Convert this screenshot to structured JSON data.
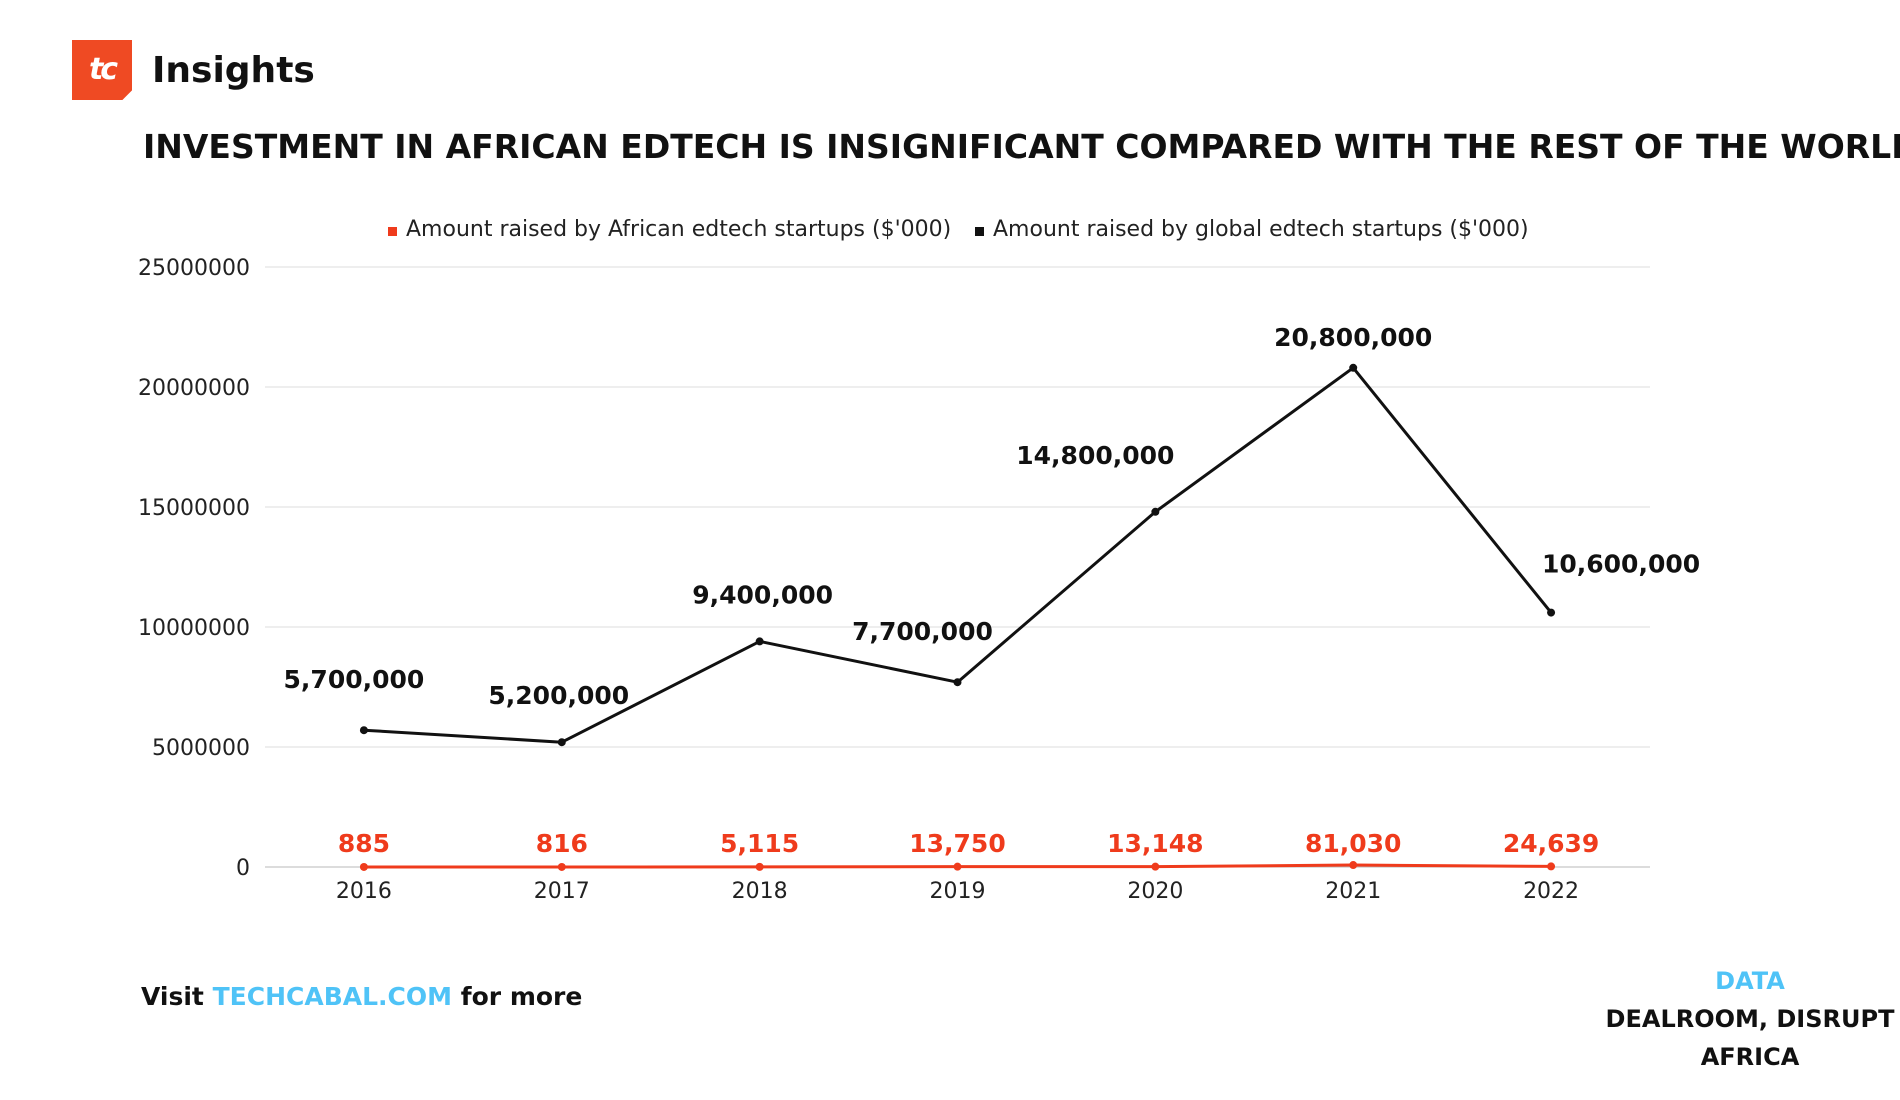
{
  "brand": {
    "name": "Insights",
    "logo_text": "tc",
    "logo_color": "#ef4a23"
  },
  "headline": "INVESTMENT IN AFRICAN EDTECH IS INSIGNIFICANT COMPARED WITH THE REST OF THE WORLD",
  "footer": {
    "visit_prefix": "Visit",
    "visit_link": "TECHCABAL.COM",
    "visit_suffix": "for more",
    "source_label": "DATA",
    "source_line1": "DEALROOM, DISRUPT",
    "source_line2": "AFRICA",
    "accent_color": "#4fc3f7"
  },
  "chart_data": {
    "type": "line",
    "title": "",
    "xlabel": "",
    "ylabel": "",
    "categories": [
      "2016",
      "2017",
      "2018",
      "2019",
      "2020",
      "2021",
      "2022"
    ],
    "ylim": [
      0,
      25000000
    ],
    "yticks": [
      "0",
      "5000000",
      "10000000",
      "15000000",
      "20000000",
      "25000000"
    ],
    "grid": true,
    "legend_position": "top-center",
    "series": [
      {
        "name": "Amount raised by African edtech startups ($'000)",
        "color": "#ef3b1c",
        "values": [
          885,
          816,
          5115,
          13750,
          13148,
          81030,
          24639
        ],
        "labels": [
          "885",
          "816",
          "5,115",
          "13,750",
          "13,148",
          "81,030",
          "24,639"
        ]
      },
      {
        "name": "Amount raised by global edtech startups ($'000)",
        "color": "#111111",
        "values": [
          5700000,
          5200000,
          9400000,
          7700000,
          14800000,
          20800000,
          10600000
        ],
        "labels": [
          "5,700,000",
          "5,200,000",
          "9,400,000",
          "7,700,000",
          "14,800,000",
          "20,800,000",
          "10,600,000"
        ]
      }
    ]
  }
}
